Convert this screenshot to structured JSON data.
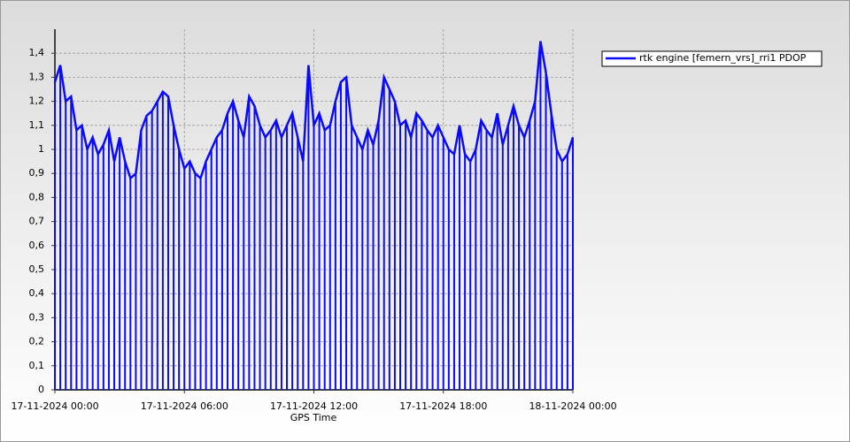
{
  "chart_data": {
    "type": "line",
    "x_label": "GPS Time",
    "x": [
      0,
      0.25,
      0.5,
      0.75,
      1,
      1.25,
      1.5,
      1.75,
      2,
      2.25,
      2.5,
      2.75,
      3,
      3.25,
      3.5,
      3.75,
      4,
      4.25,
      4.5,
      4.75,
      5,
      5.25,
      5.5,
      5.75,
      6,
      6.25,
      6.5,
      6.75,
      7,
      7.25,
      7.5,
      7.75,
      8,
      8.25,
      8.5,
      8.75,
      9,
      9.25,
      9.5,
      9.75,
      10,
      10.25,
      10.5,
      10.75,
      11,
      11.25,
      11.5,
      11.75,
      12,
      12.25,
      12.5,
      12.75,
      13,
      13.25,
      13.5,
      13.75,
      14,
      14.25,
      14.5,
      14.75,
      15,
      15.25,
      15.5,
      15.75,
      16,
      16.25,
      16.5,
      16.75,
      17,
      17.25,
      17.5,
      17.75,
      18,
      18.25,
      18.5,
      18.75,
      19,
      19.25,
      19.5,
      19.75,
      20,
      20.25,
      20.5,
      20.75,
      21,
      21.25,
      21.5,
      21.75,
      22,
      22.25,
      22.5,
      22.75,
      23,
      23.25,
      23.5,
      23.75,
      24
    ],
    "series": [
      {
        "name": "rtk engine [femern_vrs]_rri1 PDOP",
        "color": "#0a0aff",
        "values": [
          1.28,
          1.35,
          1.2,
          1.22,
          1.08,
          1.1,
          1.0,
          1.05,
          0.98,
          1.02,
          1.08,
          0.95,
          1.05,
          0.95,
          0.88,
          0.9,
          1.08,
          1.14,
          1.16,
          1.2,
          1.24,
          1.22,
          1.1,
          1.0,
          0.92,
          0.95,
          0.9,
          0.88,
          0.95,
          1.0,
          1.05,
          1.08,
          1.15,
          1.2,
          1.12,
          1.05,
          1.22,
          1.18,
          1.1,
          1.05,
          1.08,
          1.12,
          1.05,
          1.1,
          1.15,
          1.05,
          0.95,
          1.35,
          1.1,
          1.15,
          1.08,
          1.1,
          1.2,
          1.28,
          1.3,
          1.1,
          1.05,
          1.0,
          1.08,
          1.02,
          1.12,
          1.3,
          1.25,
          1.2,
          1.1,
          1.12,
          1.05,
          1.15,
          1.12,
          1.08,
          1.05,
          1.1,
          1.05,
          1.0,
          0.98,
          1.1,
          0.98,
          0.95,
          1.0,
          1.12,
          1.08,
          1.05,
          1.15,
          1.02,
          1.1,
          1.18,
          1.1,
          1.05,
          1.12,
          1.2,
          1.45,
          1.32,
          1.15,
          1.0,
          0.95,
          0.98,
          1.05
        ]
      }
    ],
    "xlim": [
      0,
      24
    ],
    "xticks": [
      {
        "value": 0,
        "label": "17-11-2024 00:00"
      },
      {
        "value": 6,
        "label": "17-11-2024 06:00"
      },
      {
        "value": 12,
        "label": "17-11-2024 12:00"
      },
      {
        "value": 18,
        "label": "17-11-2024 18:00"
      },
      {
        "value": 24,
        "label": "18-11-2024 00:00"
      }
    ],
    "ylim": [
      0,
      1.5
    ],
    "yticks": [
      0,
      {
        "value": 0.1,
        "label": "0,1"
      },
      {
        "value": 0.2,
        "label": "0,2"
      },
      {
        "value": 0.3,
        "label": "0,3"
      },
      {
        "value": 0.4,
        "label": "0,4"
      },
      {
        "value": 0.5,
        "label": "0,5"
      },
      {
        "value": 0.6,
        "label": "0,6"
      },
      {
        "value": 0.7,
        "label": "0,7"
      },
      {
        "value": 0.8,
        "label": "0,8"
      },
      {
        "value": 0.9,
        "label": "0,9"
      },
      1,
      {
        "value": 1.1,
        "label": "1,1"
      },
      {
        "value": 1.2,
        "label": "1,2"
      },
      {
        "value": 1.3,
        "label": "1,3"
      },
      {
        "value": 1.4,
        "label": "1,4"
      }
    ],
    "grid": true,
    "legend": "top-right"
  }
}
